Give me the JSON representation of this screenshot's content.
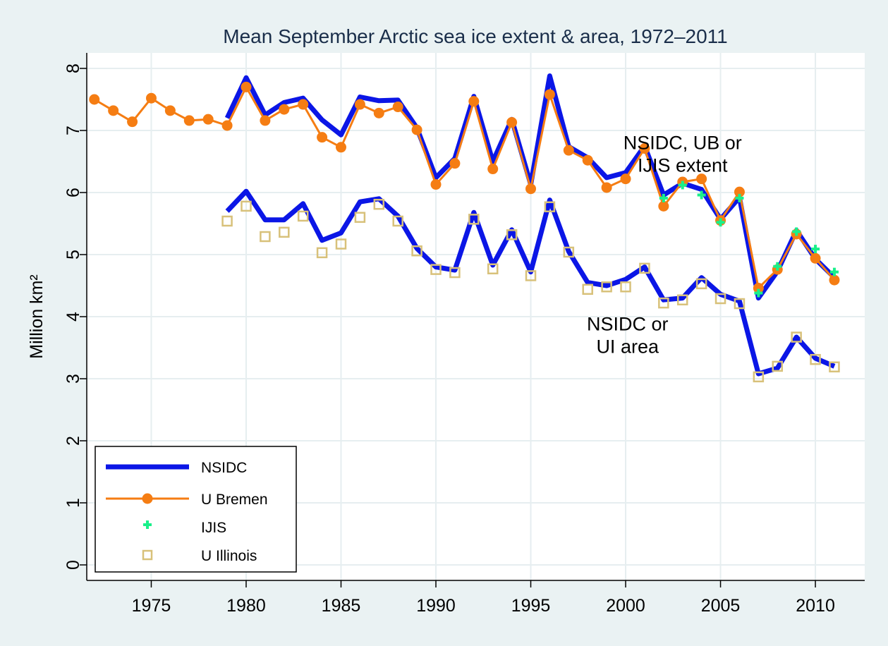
{
  "chart_data": {
    "type": "line",
    "title": "Mean September Arctic sea ice extent & area, 1972–2011",
    "xlabel": "",
    "ylabel": "Million km²",
    "xlim": [
      1971.6,
      2012.6
    ],
    "ylim": [
      -0.25,
      8.25
    ],
    "xticks": [
      1975,
      1980,
      1985,
      1990,
      1995,
      2000,
      2005,
      2010
    ],
    "yticks": [
      0,
      1,
      2,
      3,
      4,
      5,
      6,
      7,
      8
    ],
    "grid": true,
    "legend_position": "bottom-left",
    "annotations": [
      {
        "lines": [
          "NSIDC, UB or",
          "IJIS extent"
        ],
        "x": 2003.0,
        "y": 6.7
      },
      {
        "lines": [
          "NSIDC or",
          "UI area"
        ],
        "x": 2000.1,
        "y": 3.78
      }
    ],
    "series": [
      {
        "name": "NSIDC",
        "group": "extent",
        "style": "line",
        "color": "#0b16e6",
        "x": [
          1979,
          1980,
          1981,
          1982,
          1983,
          1984,
          1985,
          1986,
          1987,
          1988,
          1989,
          1990,
          1991,
          1992,
          1993,
          1994,
          1995,
          1996,
          1997,
          1998,
          1999,
          2000,
          2001,
          2002,
          2003,
          2004,
          2005,
          2006,
          2007,
          2008,
          2009,
          2010,
          2011
        ],
        "y": [
          7.2,
          7.85,
          7.25,
          7.45,
          7.52,
          7.17,
          6.93,
          7.54,
          7.48,
          7.49,
          7.04,
          6.24,
          6.55,
          7.55,
          6.5,
          7.18,
          6.13,
          7.88,
          6.74,
          6.56,
          6.24,
          6.32,
          6.75,
          5.96,
          6.15,
          6.05,
          5.57,
          5.92,
          4.3,
          4.73,
          5.39,
          4.93,
          4.63
        ]
      },
      {
        "name": "",
        "group": "area",
        "style": "line",
        "color": "#0b16e6",
        "x": [
          1979,
          1980,
          1981,
          1982,
          1983,
          1984,
          1985,
          1986,
          1987,
          1988,
          1989,
          1990,
          1991,
          1992,
          1993,
          1994,
          1995,
          1996,
          1997,
          1998,
          1999,
          2000,
          2001,
          2002,
          2003,
          2004,
          2005,
          2006,
          2007,
          2008,
          2009,
          2010,
          2011
        ],
        "y": [
          5.7,
          6.02,
          5.56,
          5.56,
          5.82,
          5.23,
          5.35,
          5.85,
          5.9,
          5.62,
          5.1,
          4.8,
          4.75,
          5.68,
          4.83,
          5.4,
          4.72,
          5.88,
          5.05,
          4.55,
          4.5,
          4.6,
          4.8,
          4.27,
          4.3,
          4.63,
          4.36,
          4.25,
          3.08,
          3.17,
          3.67,
          3.33,
          3.2
        ]
      },
      {
        "name": "U Bremen",
        "style": "line-dot",
        "color": "#f57d13",
        "x": [
          1972,
          1973,
          1974,
          1975,
          1976,
          1977,
          1978,
          1979,
          1980,
          1981,
          1982,
          1983,
          1984,
          1985,
          1986,
          1987,
          1988,
          1989,
          1990,
          1991,
          1992,
          1993,
          1994,
          1995,
          1996,
          1997,
          1998,
          1999,
          2000,
          2001,
          2002,
          2003,
          2004,
          2005,
          2006,
          2007,
          2008,
          2009,
          2010,
          2011
        ],
        "y": [
          7.5,
          7.32,
          7.14,
          7.52,
          7.32,
          7.16,
          7.18,
          7.08,
          7.7,
          7.16,
          7.34,
          7.42,
          6.89,
          6.73,
          7.42,
          7.28,
          7.38,
          7.01,
          6.13,
          6.47,
          7.47,
          6.38,
          7.13,
          6.06,
          7.58,
          6.68,
          6.52,
          6.08,
          6.22,
          6.71,
          5.78,
          6.17,
          6.22,
          5.55,
          6.01,
          4.46,
          4.76,
          5.33,
          4.94,
          4.59
        ]
      },
      {
        "name": "IJIS",
        "style": "plus",
        "color": "#19f08a",
        "x": [
          2002,
          2003,
          2004,
          2005,
          2006,
          2007,
          2008,
          2009,
          2010,
          2011
        ],
        "y": [
          5.91,
          6.12,
          5.96,
          5.52,
          5.91,
          4.38,
          4.81,
          5.37,
          5.09,
          4.72
        ]
      },
      {
        "name": "U Illinois",
        "style": "square",
        "color": "#d8c17a",
        "x": [
          1979,
          1980,
          1981,
          1982,
          1983,
          1984,
          1985,
          1986,
          1987,
          1988,
          1989,
          1990,
          1991,
          1992,
          1993,
          1994,
          1995,
          1996,
          1997,
          1998,
          1999,
          2000,
          2001,
          2002,
          2003,
          2004,
          2005,
          2006,
          2007,
          2008,
          2009,
          2010,
          2011
        ],
        "y": [
          5.54,
          5.78,
          5.29,
          5.36,
          5.62,
          5.03,
          5.17,
          5.6,
          5.81,
          5.54,
          5.06,
          4.76,
          4.71,
          5.57,
          4.77,
          5.32,
          4.66,
          5.77,
          5.04,
          4.44,
          4.48,
          4.48,
          4.78,
          4.22,
          4.27,
          4.53,
          4.29,
          4.21,
          3.03,
          3.2,
          3.67,
          3.31,
          3.19
        ]
      }
    ]
  }
}
